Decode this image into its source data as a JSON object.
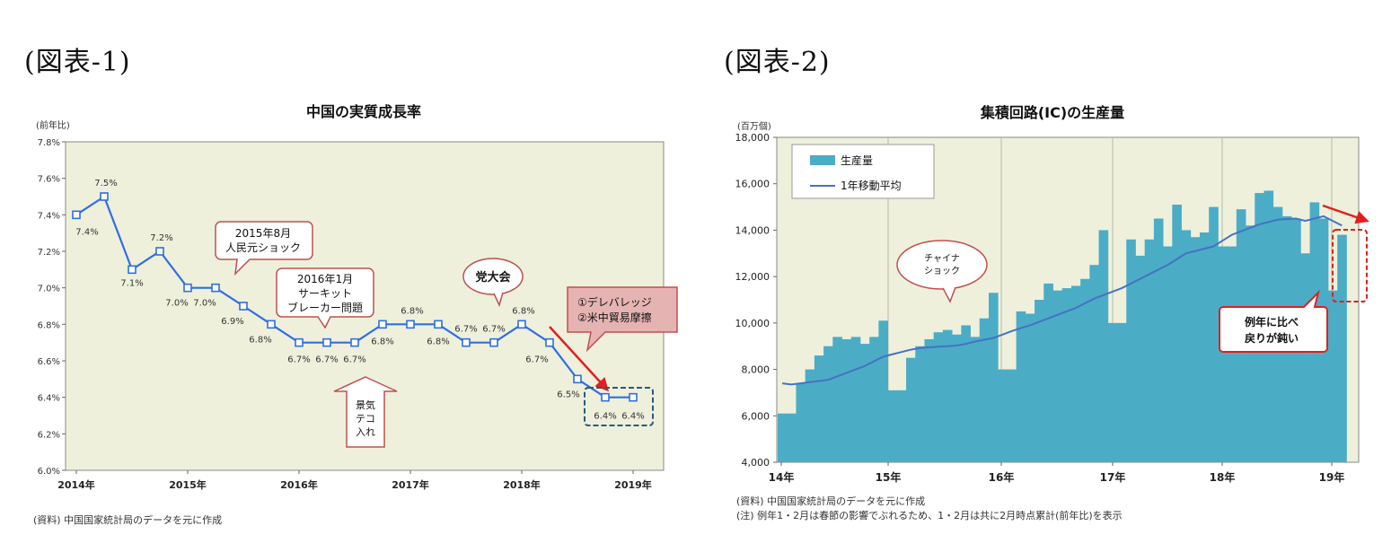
{
  "figures": {
    "fig1_label": "(図表-1)",
    "fig2_label": "(図表-2)"
  },
  "chart_data": [
    {
      "type": "line",
      "title": "中国の実質成長率",
      "ylabel": "(前年比)",
      "xlabel": "",
      "ylim": [
        6.0,
        7.8
      ],
      "yticks": [
        "6.0%",
        "6.2%",
        "6.4%",
        "6.6%",
        "6.8%",
        "7.0%",
        "7.2%",
        "7.4%",
        "7.6%",
        "7.8%"
      ],
      "xticks": [
        "2014年",
        "2015年",
        "2016年",
        "2017年",
        "2018年",
        "2019年"
      ],
      "grid": false,
      "series": [
        {
          "color": "#2f6fe0",
          "values": [
            7.4,
            7.5,
            7.1,
            7.2,
            7.0,
            7.0,
            6.9,
            6.8,
            6.7,
            6.7,
            6.7,
            6.8,
            6.8,
            6.8,
            6.7,
            6.7,
            6.8,
            6.7,
            6.5,
            6.4,
            6.4
          ],
          "labels": [
            "7.4%",
            "7.5%",
            "7.1%",
            "7.2%",
            "7.0%",
            "7.0%",
            "6.9%",
            "6.8%",
            "6.7%",
            "6.7%",
            "6.7%",
            "6.8%",
            "6.8%",
            "6.8%",
            "6.7%",
            "6.7%",
            "6.8%",
            "6.7%",
            "6.5%",
            "6.4%",
            "6.4%"
          ]
        }
      ],
      "annotations": {
        "shock2015_line1": "2015年8月",
        "shock2015_line2": "人民元ショック",
        "cb2016_line1": "2016年1月",
        "cb2016_line2": "サーキット",
        "cb2016_line3": "ブレーカー問題",
        "party": "党大会",
        "risk_line1": "①デレバレッジ",
        "risk_line2": "②米中貿易摩擦",
        "stim_line1": "景気",
        "stim_line2": "テコ",
        "stim_line3": "入れ"
      },
      "source_note": "(資料) 中国国家統計局のデータを元に作成"
    },
    {
      "type": "bar",
      "title": "集積回路(IC)の生産量",
      "ylabel": "(百万個)",
      "ylim": [
        4000,
        18000
      ],
      "yticks": [
        "4,000",
        "6,000",
        "8,000",
        "10,000",
        "12,000",
        "14,000",
        "16,000",
        "18,000"
      ],
      "xticks": [
        "14年",
        "15年",
        "16年",
        "17年",
        "18年",
        "19年"
      ],
      "grid": false,
      "legend_position": "top-left",
      "series": [
        {
          "name": "生産量",
          "color": "#4bacc6",
          "values": [
            6100,
            6100,
            7400,
            8000,
            8600,
            9000,
            9400,
            9300,
            9400,
            9100,
            9400,
            10100,
            7100,
            7100,
            8500,
            9000,
            9300,
            9600,
            9700,
            9500,
            9900,
            9400,
            10200,
            11300,
            8000,
            8000,
            10500,
            10400,
            11000,
            11700,
            11400,
            11500,
            11600,
            11900,
            12500,
            14000,
            10000,
            10000,
            13600,
            12900,
            13600,
            14500,
            13300,
            15100,
            14000,
            13700,
            13900,
            15000,
            13300,
            13300,
            14900,
            14200,
            15600,
            15700,
            15000,
            14600,
            14500,
            13000,
            15200,
            14500,
            11400,
            13800
          ]
        },
        {
          "name": "1年移動平均",
          "color": "#4472c4",
          "values": [
            7400,
            7350,
            7400,
            7450,
            7500,
            7550,
            7700,
            7850,
            8000,
            8150,
            8350,
            8550,
            8650,
            8750,
            8850,
            8920,
            8950,
            8980,
            9000,
            9030,
            9100,
            9200,
            9280,
            9350,
            9500,
            9650,
            9780,
            9900,
            10050,
            10200,
            10350,
            10500,
            10650,
            10850,
            11050,
            11200,
            11350,
            11500,
            11700,
            11900,
            12100,
            12300,
            12500,
            12750,
            13000,
            13100,
            13200,
            13300,
            13550,
            13800,
            13950,
            14100,
            14250,
            14350,
            14450,
            14480,
            14500,
            14400,
            14500,
            14600,
            14400,
            14200
          ]
        }
      ],
      "annotations": {
        "china_shock_line1": "チャイナ",
        "china_shock_line2": "ショック",
        "weak_line1": "例年に比べ",
        "weak_line2": "戻りが鈍い"
      },
      "source_note": "(資料) 中国国家統計局のデータを元に作成",
      "footnote": "(注) 例年1・2月は春節の影響でぶれるため、1・2月は共に2月時点累計(前年比)を表示"
    }
  ]
}
